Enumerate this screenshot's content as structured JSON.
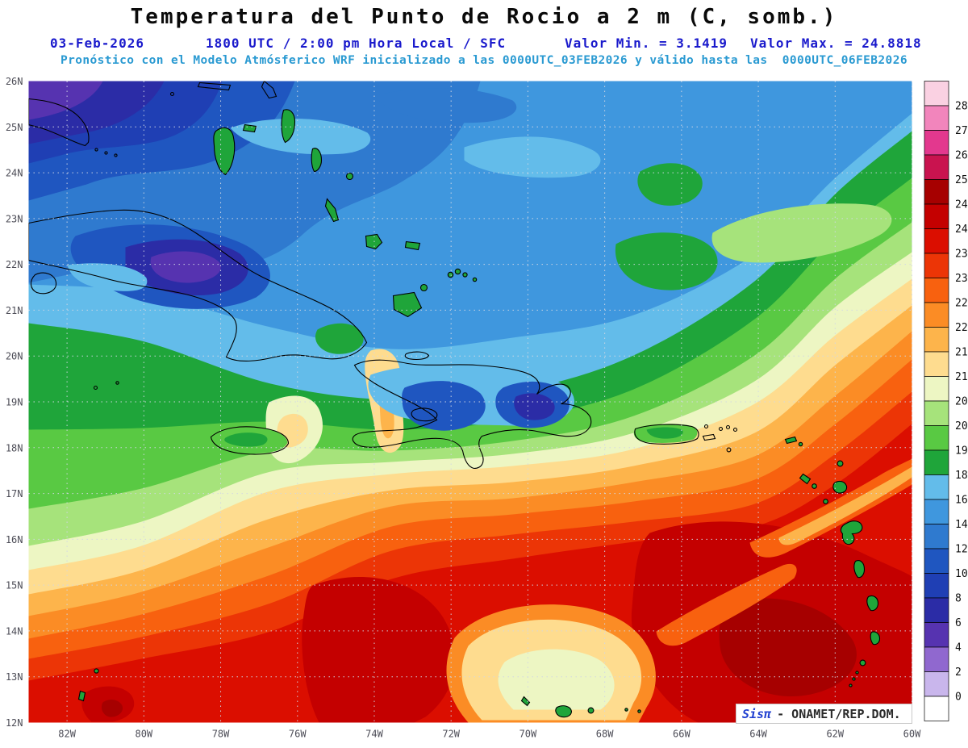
{
  "header": {
    "title": "Temperatura del Punto de Rocio a 2 m (C, somb.)",
    "date": "03-Feb-2026",
    "time": "1800 UTC / 2:00 pm Hora Local / SFC",
    "min_label": "Valor Min. = 3.1419",
    "max_label": "Valor Max. = 24.8818",
    "model_line": "Pronóstico con el Modelo Atmósferico WRF inicializado a las 0000UTC_03FEB2026 y válido hasta las  0000UTC_06FEB2026"
  },
  "stats": {
    "min": "3.1419",
    "max": "24.8818",
    "units": "C",
    "level": "SFC"
  },
  "axes": {
    "lat_ticks": [
      "26N",
      "25N",
      "24N",
      "23N",
      "22N",
      "21N",
      "20N",
      "19N",
      "18N",
      "17N",
      "16N",
      "15N",
      "14N",
      "13N",
      "12N"
    ],
    "lon_ticks": [
      "82W",
      "80W",
      "78W",
      "76W",
      "74W",
      "72W",
      "70W",
      "68W",
      "66W",
      "64W",
      "62W",
      "60W"
    ]
  },
  "legend": {
    "scale_labels": [
      "28",
      "27",
      "26",
      "25",
      "24.5",
      "24",
      "23.5",
      "23",
      "22.5",
      "22",
      "21.5",
      "21",
      "20.5",
      "20",
      "19",
      "18",
      "16",
      "14",
      "12",
      "10",
      "8",
      "6",
      "4",
      "2",
      "0"
    ],
    "band_colors": [
      "#FAD1E2",
      "#F285BC",
      "#E3388E",
      "#C9134F",
      "#A60000",
      "#C40000",
      "#DB0E00",
      "#EC3506",
      "#F8610F",
      "#FB8C25",
      "#FDB44B",
      "#FEDC8F",
      "#EDF6C3",
      "#A6E37B",
      "#59C943",
      "#1FA53A",
      "#63BCEA",
      "#3F97DE",
      "#2F7ACF",
      "#1F56C0",
      "#1F3FB4",
      "#2B2CA6",
      "#5633B0",
      "#9068CF",
      "#C9B6EC",
      "#FFFFFF"
    ]
  },
  "watermark": {
    "brand": "Sisπ",
    "label": "- ONAMET/REP.DOM."
  }
}
